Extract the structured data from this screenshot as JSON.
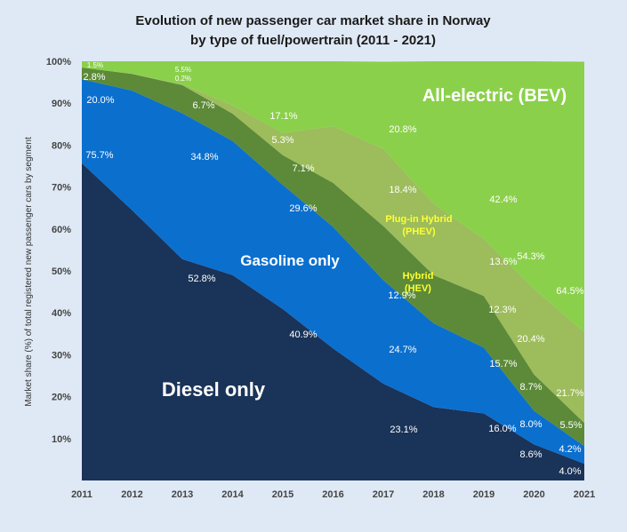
{
  "chart_data": {
    "type": "area",
    "stacked": true,
    "title": "Evolution of new passenger car market share in Norway",
    "subtitle": "by type of fuel/powertrain (2011 - 2021)",
    "xlabel": "",
    "ylabel": "Market share (%) of total registered new passenger cars by segment",
    "ylim": [
      0,
      100
    ],
    "yticks": [
      "10%",
      "20%",
      "30%",
      "40%",
      "50%",
      "60%",
      "70%",
      "80%",
      "90%",
      "100%"
    ],
    "x": [
      "2011",
      "2012",
      "2013",
      "2014",
      "2015",
      "2016",
      "2017",
      "2018",
      "2019",
      "2020",
      "2021"
    ],
    "series": [
      {
        "name": "Diesel only",
        "color": "#1a3358",
        "values": [
          75.7,
          64.5,
          52.8,
          49.0,
          40.9,
          31.5,
          23.1,
          17.5,
          16.0,
          8.6,
          4.0
        ]
      },
      {
        "name": "Gasoline only",
        "color": "#0b6fce",
        "values": [
          20.0,
          28.5,
          34.8,
          32.0,
          29.6,
          29.0,
          24.7,
          20.0,
          15.7,
          8.0,
          4.2
        ]
      },
      {
        "name": "Hybrid (HEV)",
        "color": "#5c8a38",
        "values": [
          2.8,
          4.0,
          6.7,
          6.5,
          7.1,
          10.5,
          12.9,
          11.5,
          12.3,
          8.7,
          5.5
        ]
      },
      {
        "name": "Plug-in Hybrid (PHEV)",
        "color": "#9dbc5c",
        "values": [
          0.0,
          0.0,
          0.2,
          2.0,
          5.3,
          13.5,
          18.4,
          17.0,
          13.6,
          20.4,
          21.7
        ]
      },
      {
        "name": "All-electric (BEV)",
        "color": "#8bd04b",
        "values": [
          1.5,
          3.0,
          5.5,
          10.5,
          17.1,
          15.5,
          20.8,
          34.0,
          42.4,
          54.3,
          64.5
        ]
      }
    ],
    "annotations": {
      "diesel": [
        "75.7%",
        "52.8%",
        "40.9%",
        "23.1%",
        "16.0%",
        "8.6%",
        "4.0%"
      ],
      "gasoline": [
        "20.0%",
        "34.8%",
        "29.6%",
        "24.7%",
        "15.7%",
        "8.0%",
        "4.2%"
      ],
      "hybrid": [
        "2.8%",
        "6.7%",
        "7.1%",
        "12.9%",
        "12.3%",
        "8.7%",
        "5.5%"
      ],
      "phev": [
        "0.2%",
        "5.3%",
        "18.4%",
        "13.6%",
        "20.4%",
        "21.7%"
      ],
      "bev": [
        "1.5%",
        "5.5%",
        "17.1%",
        "20.8%",
        "42.4%",
        "54.3%",
        "64.5%"
      ]
    },
    "region_labels": {
      "bev": "All-electric (BEV)",
      "gasoline": "Gasoline only",
      "diesel": "Diesel only",
      "phev_line1": "Plug-in Hybrid",
      "phev_line2": "(PHEV)",
      "hev_line1": "Hybrid",
      "hev_line2": "(HEV)"
    }
  }
}
